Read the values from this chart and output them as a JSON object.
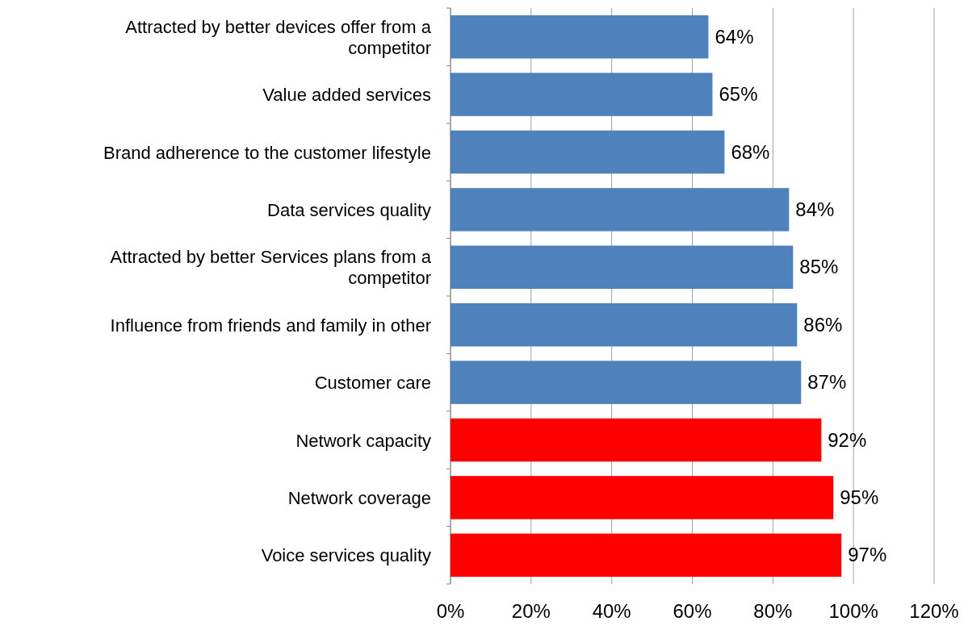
{
  "chart_data": {
    "type": "bar",
    "orientation": "horizontal",
    "categories": [
      "Attracted by better devices offer from a competitor",
      "Value added services",
      "Brand adherence to the customer lifestyle",
      "Data services quality",
      "Attracted by better Services plans  from a competitor",
      "Influence from friends and family in other",
      "Customer care",
      "Network capacity",
      "Network coverage",
      "Voice services quality"
    ],
    "values": [
      64,
      65,
      68,
      84,
      85,
      86,
      87,
      92,
      95,
      97
    ],
    "colors": [
      "#4f81bd",
      "#4f81bd",
      "#4f81bd",
      "#4f81bd",
      "#4f81bd",
      "#4f81bd",
      "#4f81bd",
      "#ff0000",
      "#ff0000",
      "#ff0000"
    ],
    "value_labels": [
      "64%",
      "65%",
      "68%",
      "84%",
      "85%",
      "86%",
      "87%",
      "92%",
      "95%",
      "97%"
    ],
    "xlim": [
      0,
      120
    ],
    "xticks": [
      {
        "value": 0,
        "label": "0%"
      },
      {
        "value": 20,
        "label": "20%"
      },
      {
        "value": 40,
        "label": "40%"
      },
      {
        "value": 60,
        "label": "60%"
      },
      {
        "value": 80,
        "label": "80%"
      },
      {
        "value": 100,
        "label": "100%"
      },
      {
        "value": 120,
        "label": "120%"
      }
    ],
    "grid": "x"
  }
}
